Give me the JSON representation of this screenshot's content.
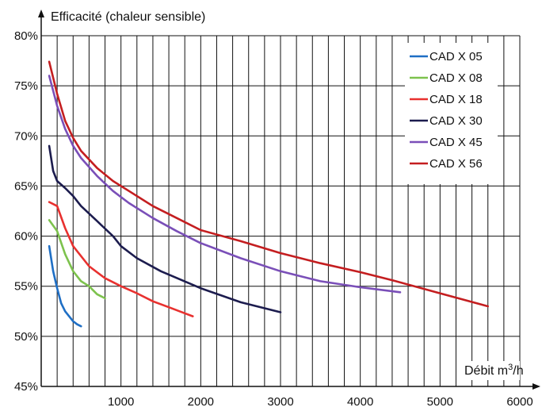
{
  "chart_data": {
    "type": "line",
    "ylabel": "Efficacité (chaleur sensible)",
    "xlabel_main": "Débit m",
    "xlabel_sup": "3",
    "xlabel_tail": "/h",
    "xlim": [
      0,
      6000
    ],
    "ylim": [
      45,
      80
    ],
    "x_ticks": [
      1000,
      2000,
      3000,
      4000,
      5000,
      6000
    ],
    "x_tick_labels": [
      "1000",
      "2000",
      "3000",
      "4000",
      "5000",
      "6000"
    ],
    "y_ticks": [
      45,
      50,
      55,
      60,
      65,
      70,
      75,
      80
    ],
    "y_tick_labels": [
      "45%",
      "50%",
      "55%",
      "60%",
      "65%",
      "70%",
      "75%",
      "80%"
    ],
    "grid": true,
    "legend_position": "top-right",
    "series": [
      {
        "name": "CAD X 05",
        "color": "#1f6fc5",
        "x": [
          100,
          150,
          200,
          250,
          300,
          350,
          400,
          450,
          500
        ],
        "y": [
          59.0,
          56.5,
          54.8,
          53.3,
          52.5,
          52.0,
          51.5,
          51.2,
          51.0
        ]
      },
      {
        "name": "CAD X 08",
        "color": "#7dc24d",
        "x": [
          100,
          200,
          300,
          400,
          500,
          600,
          700,
          800
        ],
        "y": [
          61.6,
          60.5,
          58.2,
          56.5,
          55.5,
          55.0,
          54.2,
          53.8
        ]
      },
      {
        "name": "CAD X 18",
        "color": "#e8312f",
        "x": [
          100,
          200,
          300,
          400,
          600,
          800,
          1000,
          1200,
          1400,
          1600,
          1800,
          1900
        ],
        "y": [
          63.4,
          63.0,
          60.8,
          59.0,
          57.0,
          55.8,
          55.0,
          54.3,
          53.5,
          52.9,
          52.3,
          52.0
        ]
      },
      {
        "name": "CAD X 30",
        "color": "#1c1c4e",
        "x": [
          100,
          150,
          200,
          300,
          400,
          500,
          700,
          900,
          1000,
          1200,
          1500,
          2000,
          2500,
          3000
        ],
        "y": [
          69.0,
          66.5,
          65.5,
          64.8,
          64.0,
          63.0,
          61.5,
          60.0,
          59.0,
          57.8,
          56.5,
          54.8,
          53.4,
          52.4
        ]
      },
      {
        "name": "CAD X 45",
        "color": "#7a4fb8",
        "x": [
          100,
          200,
          300,
          400,
          500,
          700,
          900,
          1100,
          1400,
          1700,
          2000,
          2500,
          3000,
          3500,
          4000,
          4500
        ],
        "y": [
          76.0,
          73.0,
          70.7,
          69.0,
          67.8,
          66.0,
          64.5,
          63.3,
          61.8,
          60.5,
          59.3,
          57.8,
          56.5,
          55.5,
          54.9,
          54.4
        ]
      },
      {
        "name": "CAD X 56",
        "color": "#c41e20",
        "x": [
          100,
          200,
          300,
          400,
          500,
          700,
          900,
          1100,
          1400,
          1700,
          2000,
          2500,
          3000,
          3500,
          4000,
          4400,
          5000,
          5600
        ],
        "y": [
          77.4,
          74.2,
          71.5,
          69.8,
          68.5,
          66.8,
          65.5,
          64.5,
          63.0,
          61.8,
          60.6,
          59.5,
          58.3,
          57.3,
          56.4,
          55.6,
          54.3,
          53.0
        ]
      }
    ]
  }
}
